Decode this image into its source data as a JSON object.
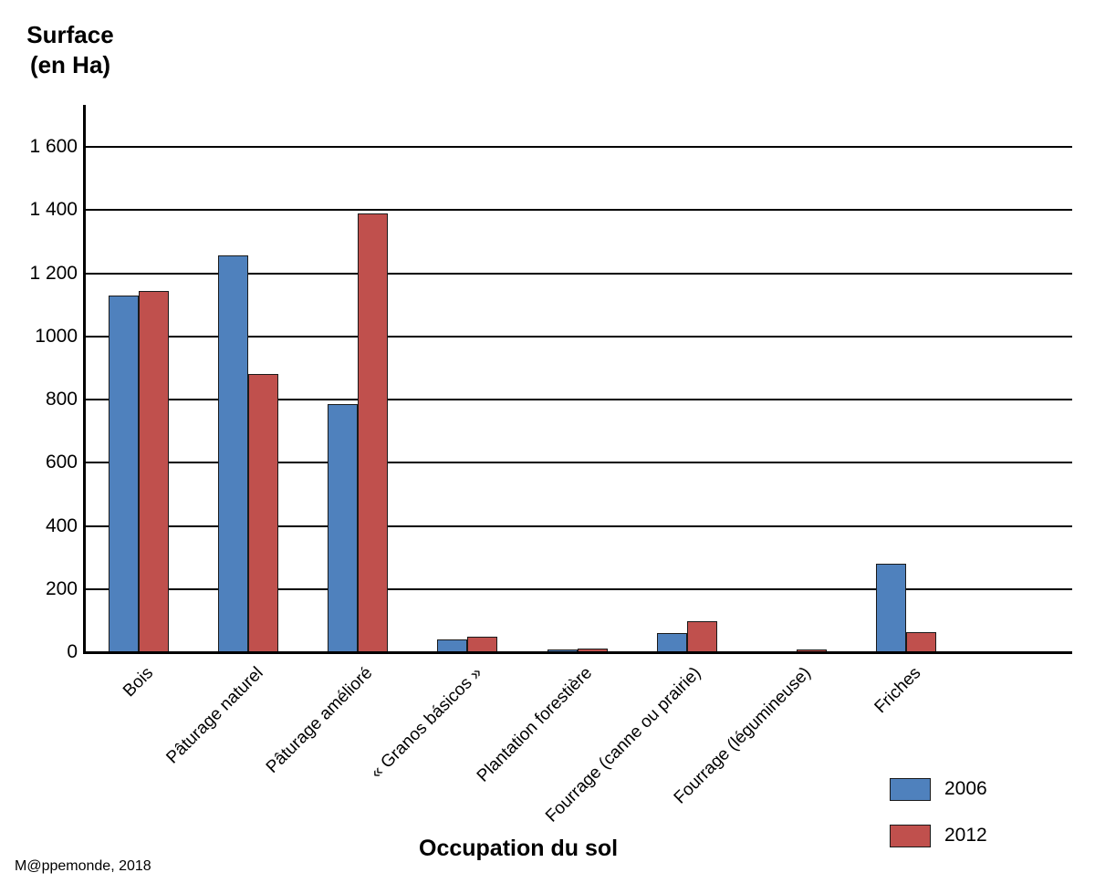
{
  "y_axis_title": {
    "line1": "Surface",
    "line2": "(en Ha)"
  },
  "x_axis_title": "Occupation du sol",
  "credit": "M@ppemonde, 2018",
  "chart_data": {
    "type": "bar",
    "title": "",
    "xlabel": "Occupation du sol",
    "ylabel": "Surface (en Ha)",
    "categories": [
      "Bois",
      "Pâturage naturel",
      "Pâturage amélioré",
      "« Granos básicos »",
      "Plantation forestière",
      "Fourrage (canne ou prairie)",
      "Fourrage (légumineuse)",
      "Friches"
    ],
    "series": [
      {
        "name": "2006",
        "color": "#4F81BD",
        "values": [
          1130,
          1255,
          785,
          40,
          8,
          62,
          0,
          280
        ]
      },
      {
        "name": "2012",
        "color": "#C0504D",
        "values": [
          1145,
          880,
          1390,
          50,
          12,
          97,
          8,
          63
        ]
      }
    ],
    "ylim": [
      0,
      1730
    ],
    "ytick_step": 200,
    "ytick_labels": [
      "0",
      "200",
      "400",
      "600",
      "800",
      "1000",
      "1 200",
      "1 400",
      "1 600"
    ],
    "grid": true,
    "legend_position": "bottom-right",
    "bar_outline_color": "#1a1a1a",
    "gridline_color": "#000000"
  }
}
